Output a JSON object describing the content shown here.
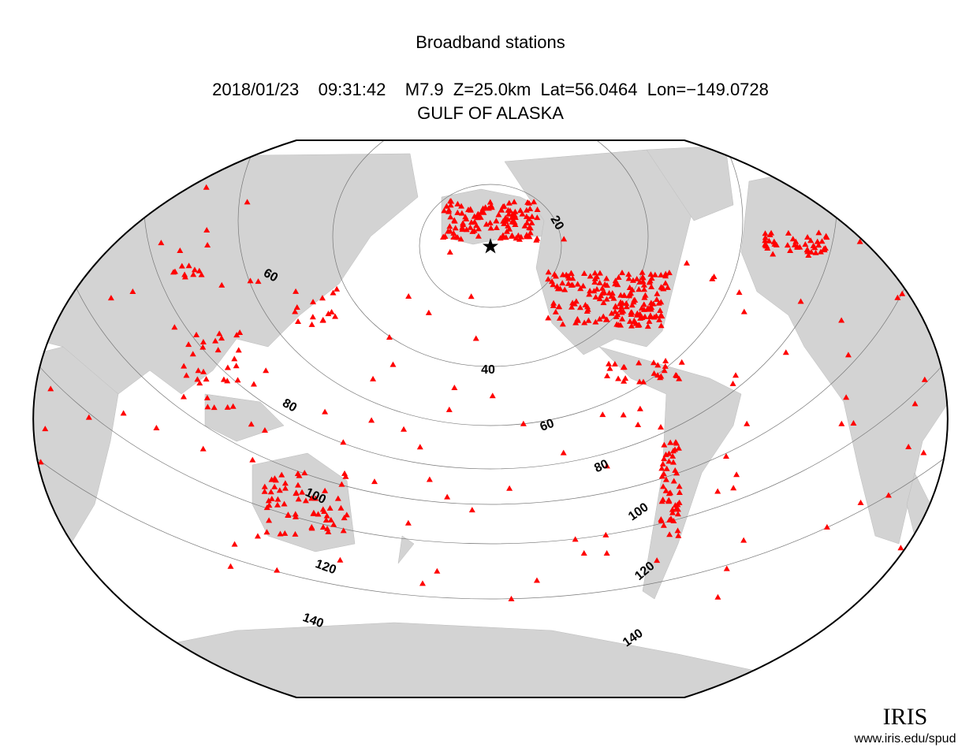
{
  "header": {
    "title": "Broadband stations",
    "event": "2018/01/23    09:31:42    M7.9  Z=25.0km  Lat=56.0464  Lon=−149.0728",
    "region": "GULF OF ALASKA"
  },
  "contours": [
    20,
    40,
    60,
    80,
    100,
    120,
    140
  ],
  "logo": {
    "name": "IRIS",
    "url": "www.iris.edu/spud"
  }
}
